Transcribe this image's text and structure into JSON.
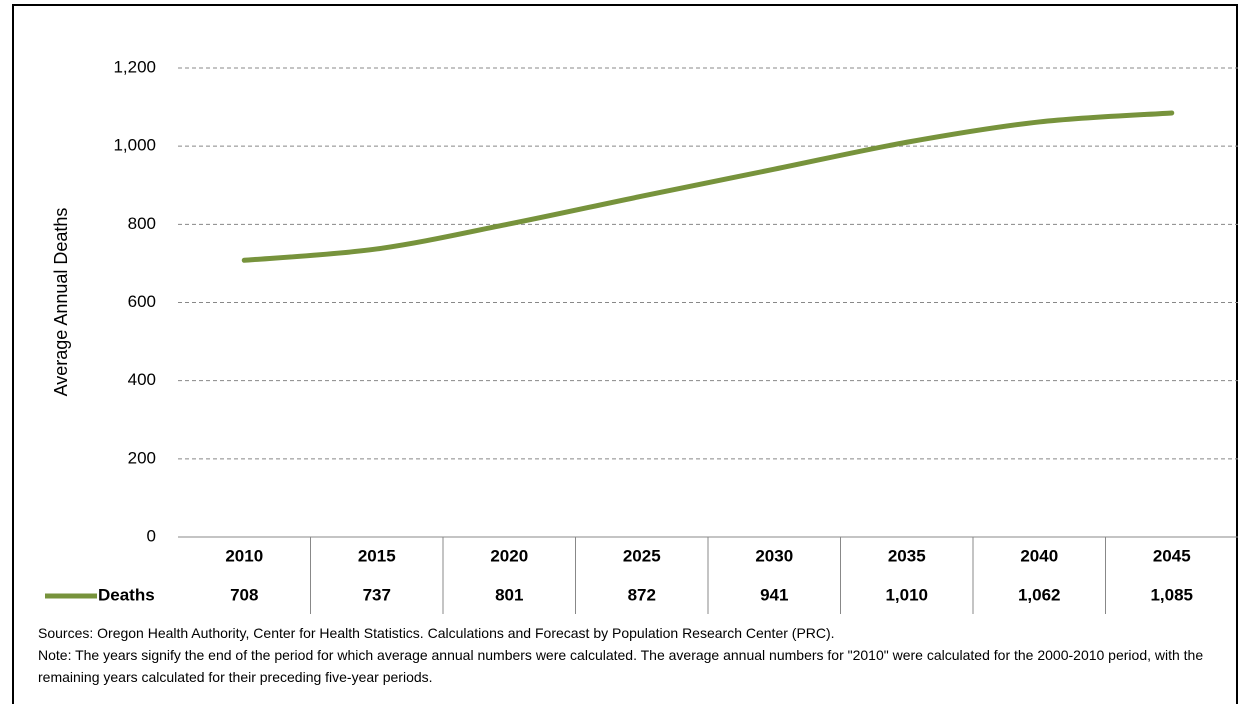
{
  "chart_data": {
    "type": "line",
    "y_label": "Average Annual Deaths",
    "categories": [
      "2010",
      "2015",
      "2020",
      "2025",
      "2030",
      "2035",
      "2040",
      "2045"
    ],
    "series": [
      {
        "name": "Deaths",
        "color": "#77933c",
        "values": [
          708,
          737,
          801,
          872,
          941,
          1010,
          1062,
          1085
        ],
        "value_labels": [
          "708",
          "737",
          "801",
          "872",
          "941",
          "1,010",
          "1,062",
          "1,085"
        ]
      }
    ],
    "ylim": [
      0,
      1200
    ],
    "yticks": [
      0,
      200,
      400,
      600,
      800,
      {
        "value": 1000,
        "label": "1,000"
      },
      {
        "value": 1200,
        "label": "1,200"
      }
    ],
    "grid": true,
    "source": "Sources: Oregon Health Authority, Center for Health Statistics. Calculations and Forecast by Population Research Center (PRC).",
    "note": "Note: The years signify the end of the period for which average annual numbers were calculated. The average annual numbers for \"2010\"  were calculated for the 2000-2010 period, with the remaining years calculated for their preceding five-year periods."
  }
}
